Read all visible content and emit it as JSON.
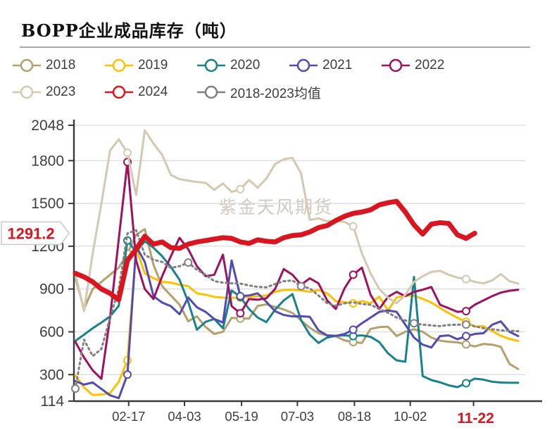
{
  "title": "BOPP企业成品库存（吨）",
  "watermark": "紫金天风期货",
  "callout": {
    "value": "1291.2",
    "text_color": "#d9161f",
    "box_fill": "#ffffff",
    "box_border": "#c8c8c8"
  },
  "axis": {
    "text_color": "#3d3d3d",
    "line_color": "#3a3a3a",
    "grid_color": "#dcdcdc"
  },
  "chart_data": {
    "type": "line",
    "title": "BOPP企业成品库存（吨）",
    "xlabel": "",
    "ylabel": "吨",
    "ylim": [
      114,
      2048
    ],
    "grid": true,
    "legend_position": "top",
    "y_ticks": [
      2048,
      1800,
      1500,
      1200,
      900,
      600,
      300,
      114
    ],
    "y_gridlines": [
      2048,
      1800,
      1500,
      1200,
      900,
      600,
      300
    ],
    "weeks": 52,
    "x_ticks": [
      {
        "label": "02-17",
        "pos": 6.143,
        "highlight": false
      },
      {
        "label": "04-03",
        "pos": 12.571,
        "highlight": false
      },
      {
        "label": "05-19",
        "pos": 19.143,
        "highlight": false
      },
      {
        "label": "07-03",
        "pos": 25.571,
        "highlight": false
      },
      {
        "label": "08-18",
        "pos": 32.143,
        "highlight": false
      },
      {
        "label": "10-02",
        "pos": 38.571,
        "highlight": false
      },
      {
        "label": "11-22",
        "pos": 45.857,
        "highlight": true
      }
    ],
    "highlight_color": "#d9161f",
    "latest_value": 1291.2,
    "series": [
      {
        "name": "2018",
        "color": "#b3a16d",
        "width": 3,
        "dashed": false,
        "marker_idx": [
          6,
          19,
          32,
          45
        ],
        "values": [
          980,
          760,
          900,
          950,
          1000,
          1050,
          1150,
          1280,
          1320,
          1070,
          920,
          855,
          790,
          674,
          708,
          634,
          585,
          600,
          698,
          693,
          693,
          782,
          792,
          775,
          757,
          732,
          680,
          628,
          590,
          575,
          568,
          540,
          528,
          522,
          620,
          633,
          636,
          570,
          600,
          618,
          600,
          560,
          538,
          530,
          526,
          512,
          498,
          515,
          510,
          495,
          375,
          339
        ]
      },
      {
        "name": "2019",
        "color": "#ffc000",
        "width": 3,
        "dashed": false,
        "marker_idx": [
          6,
          19,
          32,
          45
        ],
        "values": [
          295,
          210,
          157,
          160,
          170,
          250,
          400,
          1186,
          1010,
          975,
          950,
          945,
          930,
          920,
          870,
          860,
          845,
          840,
          838,
          840,
          845,
          850,
          855,
          880,
          893,
          895,
          890,
          880,
          893,
          870,
          815,
          808,
          800,
          815,
          800,
          846,
          750,
          840,
          855,
          853,
          831,
          805,
          767,
          732,
          698,
          670,
          636,
          640,
          605,
          572,
          550,
          536
        ]
      },
      {
        "name": "2020",
        "color": "#17818e",
        "width": 3,
        "dashed": false,
        "marker_idx": [
          6,
          19,
          32,
          45
        ],
        "values": [
          536,
          580,
          625,
          665,
          708,
          782,
          1240,
          1160,
          1235,
          1190,
          1130,
          1055,
          965,
          810,
          615,
          670,
          690,
          625,
          890,
          845,
          760,
          700,
          668,
          755,
          820,
          865,
          680,
          580,
          522,
          560,
          572,
          575,
          570,
          575,
          565,
          528,
          450,
          400,
          390,
          985,
          290,
          262,
          246,
          225,
          212,
          240,
          272,
          265,
          250,
          245,
          243,
          243
        ]
      },
      {
        "name": "2021",
        "color": "#524bb0",
        "width": 3,
        "dashed": false,
        "marker_idx": [
          6,
          19,
          32,
          45
        ],
        "values": [
          255,
          230,
          245,
          200,
          155,
          135,
          300,
          1200,
          1090,
          850,
          805,
          780,
          723,
          841,
          772,
          740,
          690,
          665,
          1100,
          850,
          855,
          870,
          810,
          745,
          718,
          708,
          710,
          705,
          610,
          575,
          572,
          585,
          615,
          660,
          700,
          740,
          750,
          740,
          650,
          560,
          510,
          490,
          570,
          575,
          548,
          570,
          585,
          590,
          650,
          673,
          600,
          570
        ]
      },
      {
        "name": "2022",
        "color": "#9e1160",
        "width": 3,
        "dashed": false,
        "marker_idx": [
          6,
          19,
          32,
          45
        ],
        "values": [
          530,
          420,
          330,
          270,
          700,
          1250,
          1790,
          1100,
          900,
          830,
          990,
          1130,
          1259,
          1180,
          1060,
          990,
          1000,
          1141,
          780,
          730,
          830,
          825,
          835,
          900,
          1040,
          1000,
          930,
          975,
          940,
          820,
          760,
          905,
          1000,
          1050,
          860,
          760,
          845,
          880,
          850,
          880,
          895,
          914,
          790,
          765,
          740,
          745,
          790,
          820,
          850,
          875,
          888,
          895
        ]
      },
      {
        "name": "2023",
        "color": "#d5c8b0",
        "width": 3,
        "dashed": false,
        "marker_idx": [
          6,
          19,
          32,
          45
        ],
        "values": [
          1010,
          745,
          1150,
          1500,
          1870,
          1950,
          1855,
          1560,
          2013,
          1920,
          1840,
          1700,
          1670,
          1660,
          1650,
          1645,
          1595,
          1640,
          1580,
          1600,
          1665,
          1610,
          1675,
          1775,
          1810,
          1820,
          1710,
          1385,
          1395,
          1375,
          1380,
          1370,
          1340,
          1150,
          1010,
          900,
          840,
          800,
          860,
          950,
          990,
          1020,
          1028,
          1000,
          980,
          970,
          950,
          940,
          960,
          1005,
          955,
          938
        ]
      },
      {
        "name": "2018-2023均值",
        "color": "#808080",
        "width": 3,
        "dashed": true,
        "marker_idx": [
          0,
          13,
          26,
          39,
          45
        ],
        "values": [
          202,
          545,
          430,
          480,
          700,
          900,
          1290,
          1313,
          1140,
          1105,
          1090,
          1048,
          1060,
          1086,
          1035,
          1000,
          955,
          945,
          940,
          938,
          925,
          915,
          912,
          935,
          955,
          960,
          920,
          905,
          855,
          800,
          783,
          800,
          807,
          795,
          790,
          760,
          735,
          700,
          680,
          660,
          650,
          645,
          640,
          648,
          650,
          651,
          640,
          625,
          618,
          610,
          608,
          604
        ]
      },
      {
        "name": "2024",
        "color": "#d9161f",
        "width": 7,
        "dashed": false,
        "marker_idx": [],
        "values": [
          1010,
          985,
          950,
          900,
          870,
          825,
          1100,
          1180,
          1270,
          1215,
          1230,
          1190,
          1185,
          1215,
          1230,
          1240,
          1250,
          1260,
          1255,
          1230,
          1220,
          1245,
          1235,
          1230,
          1260,
          1275,
          1280,
          1300,
          1330,
          1345,
          1380,
          1410,
          1430,
          1440,
          1455,
          1490,
          1505,
          1515,
          1440,
          1350,
          1285,
          1355,
          1365,
          1360,
          1280,
          1255,
          1291.2
        ]
      }
    ]
  },
  "legend_order": [
    "2018",
    "2019",
    "2020",
    "2021",
    "2022",
    "2023",
    "2024",
    "2018-2023均值"
  ]
}
